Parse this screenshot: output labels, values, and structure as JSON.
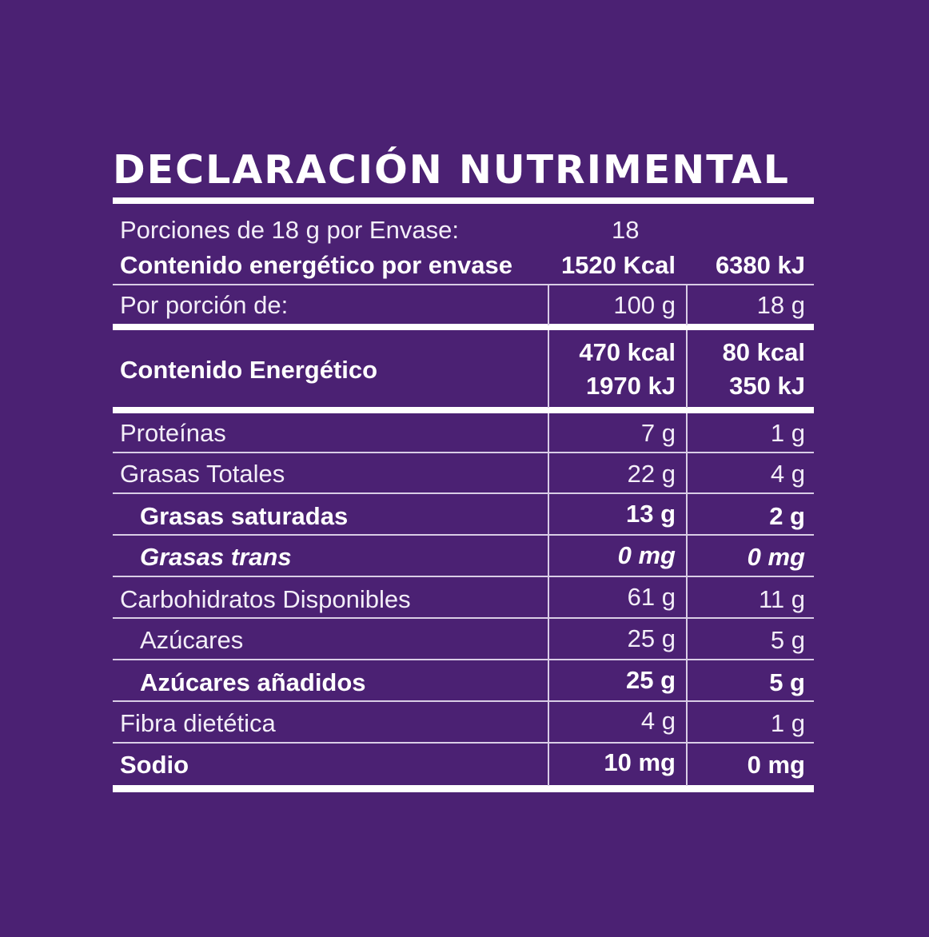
{
  "title": "DECLARACIÓN NUTRIMENTAL",
  "servings": {
    "label": "Porciones de 18 g por Envase:",
    "value": "18"
  },
  "energy_per_package": {
    "label": "Contenido energético por envase",
    "kcal": "1520 Kcal",
    "kj": "6380 kJ"
  },
  "per_portion": {
    "label": "Por porción de:",
    "col1": "100 g",
    "col2": "18 g"
  },
  "energy": {
    "label": "Contenido Energético",
    "col1_kcal": "470 kcal",
    "col1_kj": "1970 kJ",
    "col2_kcal": "80 kcal",
    "col2_kj": "350 kJ"
  },
  "rows": [
    {
      "label": "Proteínas",
      "col1": "7 g",
      "col2": "1 g"
    },
    {
      "label": "Grasas Totales",
      "col1": "22 g",
      "col2": "4 g"
    },
    {
      "label": "Grasas saturadas",
      "col1": "13 g",
      "col2": "2 g"
    },
    {
      "label": "Grasas trans",
      "col1": "0 mg",
      "col2": "0 mg"
    },
    {
      "label": "Carbohidratos Disponibles",
      "col1": "61 g",
      "col2": "11 g"
    },
    {
      "label": "Azúcares",
      "col1": "25 g",
      "col2": "5 g"
    },
    {
      "label": "Azúcares añadidos",
      "col1": "25 g",
      "col2": "5 g"
    },
    {
      "label": "Fibra dietética",
      "col1": "4 g",
      "col2": "1 g"
    },
    {
      "label": "Sodio",
      "col1": "10 mg",
      "col2": "0 mg"
    }
  ],
  "colors": {
    "background": "#4b2173",
    "text": "#ffffff"
  }
}
